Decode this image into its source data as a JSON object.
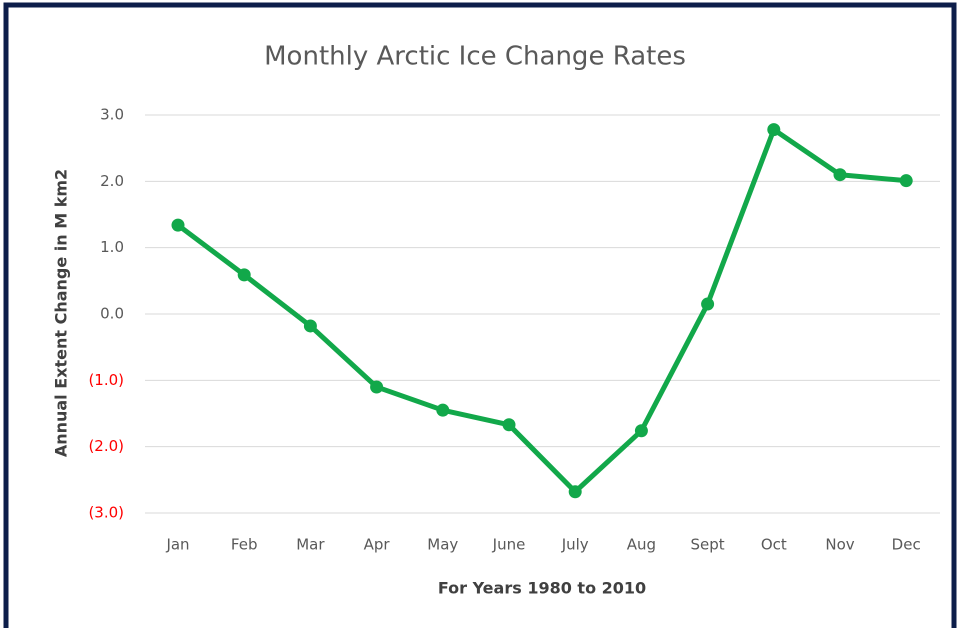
{
  "chart_data": {
    "type": "line",
    "title": "Monthly Arctic Ice Change Rates",
    "x_label": "For Years 1980 to 2010",
    "y_label": "Annual Extent Change in M km2",
    "categories": [
      "Jan",
      "Feb",
      "Mar",
      "Apr",
      "May",
      "June",
      "July",
      "Aug",
      "Sept",
      "Oct",
      "Nov",
      "Dec"
    ],
    "series": [
      {
        "name": "Annual Extent Change",
        "color": "#12a84a",
        "values": [
          1.34,
          0.59,
          -0.18,
          -1.1,
          -1.45,
          -1.67,
          -2.68,
          -1.76,
          0.15,
          2.78,
          2.1,
          2.01
        ]
      }
    ],
    "ylim": [
      -3,
      3
    ],
    "yticks": [
      {
        "value": 3,
        "label": "3.0"
      },
      {
        "value": 2,
        "label": "2.0"
      },
      {
        "value": 1,
        "label": "1.0"
      },
      {
        "value": 0,
        "label": "0.0"
      },
      {
        "value": -1,
        "label": "(1.0)"
      },
      {
        "value": -2,
        "label": "(2.0)"
      },
      {
        "value": -3,
        "label": "(3.0)"
      }
    ],
    "negative_tick_color": "#ff0000",
    "grid": true
  }
}
